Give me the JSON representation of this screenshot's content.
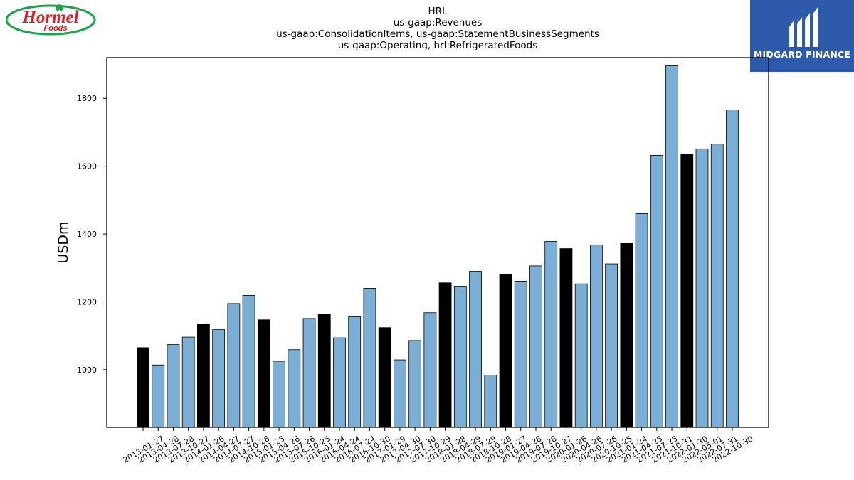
{
  "branding": {
    "left_logo_text": "Hormel",
    "left_logo_subtext": "Foods",
    "right_logo_text": "MIDGARD FINANCE"
  },
  "colors": {
    "bar_default": "#7aaed4",
    "bar_highlight": "#000000",
    "logo_red": "#e31b23",
    "logo_green": "#1aa34a",
    "midgard_blue": "#2d5aab"
  },
  "chart_data": {
    "type": "bar",
    "title_lines": [
      "HRL",
      "us-gaap:Revenues",
      "us-gaap:ConsolidationItems, us-gaap:StatementBusinessSegments",
      "us-gaap:Operating, hrl:RefrigeratedFoods"
    ],
    "xlabel": "",
    "ylabel": "USDm",
    "ylim": [
      830,
      1920
    ],
    "yticks": [
      1000,
      1200,
      1400,
      1600,
      1800
    ],
    "grid": false,
    "categories": [
      "2013-01-27",
      "2013-04-28",
      "2013-07-28",
      "2013-10-27",
      "2014-01-26",
      "2014-04-27",
      "2014-07-27",
      "2014-10-26",
      "2015-01-25",
      "2015-04-26",
      "2015-07-26",
      "2015-10-25",
      "2016-01-24",
      "2016-04-24",
      "2016-07-24",
      "2016-10-30",
      "2017-01-29",
      "2017-04-30",
      "2017-07-30",
      "2017-10-29",
      "2018-01-28",
      "2018-04-29",
      "2018-07-29",
      "2018-10-28",
      "2019-01-27",
      "2019-04-28",
      "2019-07-28",
      "2019-10-27",
      "2020-01-26",
      "2020-04-26",
      "2020-07-26",
      "2020-10-25",
      "2021-01-24",
      "2021-04-25",
      "2021-07-25",
      "2021-10-31",
      "2022-01-30",
      "2022-05-01",
      "2022-07-31",
      "2022-10-30"
    ],
    "values": [
      1065,
      1014,
      1074,
      1096,
      1135,
      1118,
      1195,
      1219,
      1147,
      1025,
      1059,
      1151,
      1164,
      1094,
      1156,
      1240,
      1124,
      1029,
      1086,
      1168,
      1256,
      1246,
      1290,
      984,
      1281,
      1261,
      1306,
      1378,
      1357,
      1253,
      1368,
      1312,
      1372,
      1460,
      1632,
      1896,
      1634,
      1651,
      1665,
      1766
    ],
    "highlighted_indices": [
      0,
      4,
      8,
      12,
      16,
      20,
      24,
      28,
      32,
      36
    ]
  }
}
